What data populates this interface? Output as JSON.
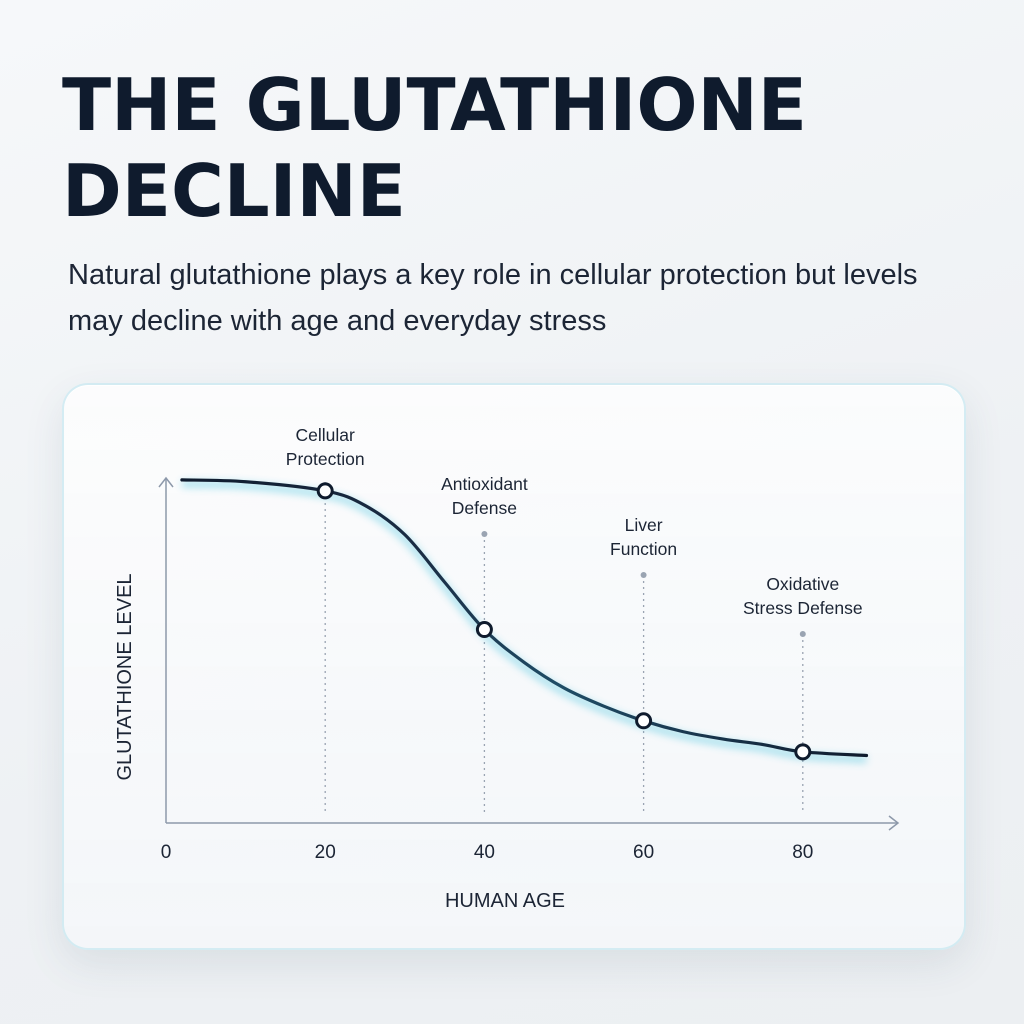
{
  "page": {
    "title": "THE GLUTATHIONE\nDECLINE",
    "subtitle": "Natural glutathione plays a key role in cellular protection but levels may decline with age and everyday stress"
  },
  "colors": {
    "line": "#0f1b2d",
    "glow": "#46c3de",
    "axis": "#8d99aa",
    "guide": "#9aa4b2",
    "text": "#1c2535"
  },
  "chart_data": {
    "type": "line",
    "title": "",
    "xlabel": "HUMAN AGE",
    "ylabel": "GLUTATHIONE LEVEL",
    "xlim": [
      0,
      90
    ],
    "ylim": [
      0,
      100
    ],
    "x_ticks": [
      0,
      20,
      40,
      60,
      80
    ],
    "x_tick_labels": [
      "0",
      "20",
      "40",
      "60",
      "80"
    ],
    "grid": false,
    "series": [
      {
        "x": [
          2,
          10,
          20,
          25,
          30,
          35,
          40,
          45,
          50,
          55,
          60,
          65,
          70,
          75,
          80,
          88
        ],
        "y": [
          94,
          93.5,
          91,
          87,
          79,
          66,
          53,
          44,
          37,
          32,
          28,
          25,
          23,
          21.5,
          19.5,
          18.5
        ]
      }
    ],
    "markers": [
      {
        "x": 20,
        "y": 91,
        "label": "Cellular\nProtection"
      },
      {
        "x": 40,
        "y": 53,
        "label": "Antioxidant\nDefense"
      },
      {
        "x": 60,
        "y": 28,
        "label": "Liver\nFunction"
      },
      {
        "x": 80,
        "y": 19.5,
        "label": "Oxidative\nStress Defense"
      }
    ]
  }
}
